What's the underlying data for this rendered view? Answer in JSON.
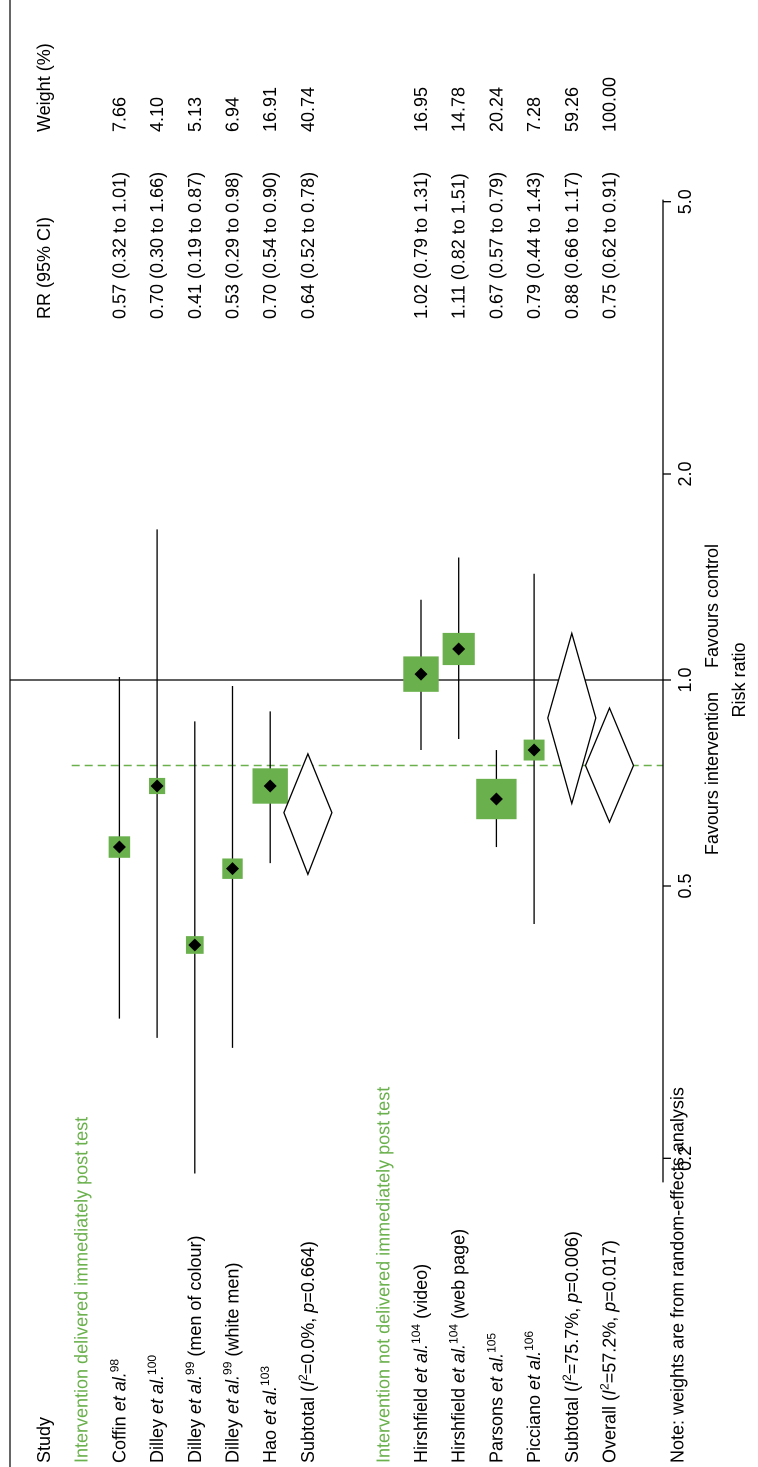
{
  "chart_data": {
    "type": "forest",
    "colors": {
      "marker": "#6ab04c",
      "accent": "#6ab04c",
      "ink": "#000000"
    },
    "headers": {
      "study": "Study",
      "rr": "RR (95% CI)",
      "weight": "Weight (%)"
    },
    "groups": [
      {
        "title": "Intervention delivered immediately post test",
        "studies": [
          {
            "label": "Coffin ",
            "etal": "et al.",
            "ref": "98",
            "suffix": "",
            "rr": 0.57,
            "lo": 0.32,
            "hi": 1.01,
            "ci_text": "0.57 (0.32 to 1.01)",
            "weight": 7.66,
            "weight_text": "7.66"
          },
          {
            "label": "Dilley ",
            "etal": "et al.",
            "ref": "100",
            "suffix": "",
            "rr": 0.7,
            "lo": 0.3,
            "hi": 1.66,
            "ci_text": "0.70 (0.30 to 1.66)",
            "weight": 4.1,
            "weight_text": "4.10"
          },
          {
            "label": "Dilley ",
            "etal": "et al.",
            "ref": "99",
            "suffix": " (men of colour)",
            "rr": 0.41,
            "lo": 0.19,
            "hi": 0.87,
            "ci_text": "0.41 (0.19 to 0.87)",
            "weight": 5.13,
            "weight_text": "5.13"
          },
          {
            "label": "Dilley ",
            "etal": "et al.",
            "ref": "99",
            "suffix": " (white men)",
            "rr": 0.53,
            "lo": 0.29,
            "hi": 0.98,
            "ci_text": "0.53 (0.29 to 0.98)",
            "weight": 6.94,
            "weight_text": "6.94"
          },
          {
            "label": "Hao ",
            "etal": "et al.",
            "ref": "103",
            "suffix": "",
            "rr": 0.7,
            "lo": 0.54,
            "hi": 0.9,
            "ci_text": "0.70 (0.54 to 0.90)",
            "weight": 16.91,
            "weight_text": "16.91"
          }
        ],
        "subtotal": {
          "label_pre": "Subtotal (",
          "i2_var": "I",
          "i2_text": "=0.0%, ",
          "p_var": "p",
          "p_text": "=0.664)",
          "rr": 0.64,
          "lo": 0.52,
          "hi": 0.78,
          "ci_text": "0.64 (0.52 to 0.78)",
          "weight_text": "40.74"
        }
      },
      {
        "title": "Intervention not delivered immediately post test",
        "studies": [
          {
            "label": "Hirshfield ",
            "etal": "et al.",
            "ref": "104",
            "suffix": " (video)",
            "rr": 1.02,
            "lo": 0.79,
            "hi": 1.31,
            "ci_text": "1.02 (0.79 to 1.31)",
            "weight": 16.95,
            "weight_text": "16.95"
          },
          {
            "label": "Hirshfield ",
            "etal": "et al.",
            "ref": "104",
            "suffix": " (web page)",
            "rr": 1.11,
            "lo": 0.82,
            "hi": 1.51,
            "ci_text": "1.11 (0.82 to 1.51)",
            "weight": 14.78,
            "weight_text": "14.78"
          },
          {
            "label": "Parsons ",
            "etal": "et al.",
            "ref": "105",
            "suffix": "",
            "rr": 0.67,
            "lo": 0.57,
            "hi": 0.79,
            "ci_text": "0.67 (0.57 to 0.79)",
            "weight": 20.24,
            "weight_text": "20.24"
          },
          {
            "label": "Picciano ",
            "etal": "et al.",
            "ref": "106",
            "suffix": "",
            "rr": 0.79,
            "lo": 0.44,
            "hi": 1.43,
            "ci_text": "0.79 (0.44 to 1.43)",
            "weight": 7.28,
            "weight_text": "7.28"
          }
        ],
        "subtotal": {
          "label_pre": "Subtotal (",
          "i2_var": "I",
          "i2_text": "=75.7%, ",
          "p_var": "p",
          "p_text": "=0.006)",
          "rr": 0.88,
          "lo": 0.66,
          "hi": 1.17,
          "ci_text": "0.88 (0.66 to 1.17)",
          "weight_text": "59.26"
        }
      }
    ],
    "overall": {
      "label_pre": "Overall (",
      "i2_var": "I",
      "i2_text": "=57.2%, ",
      "p_var": "p",
      "p_text": "=0.017)",
      "rr": 0.75,
      "lo": 0.62,
      "hi": 0.91,
      "ci_text": "0.75 (0.62 to 0.91)",
      "weight_text": "100.00"
    },
    "note": "Note: weights are from random-effects analysis",
    "x_axis": {
      "scale": "log",
      "ticks": [
        0.2,
        0.5,
        1.0,
        2.0,
        5.0
      ],
      "tick_labels": [
        "0.2",
        "0.5",
        "1.0",
        "2.0",
        "5.0"
      ],
      "xlabel": "Risk ratio",
      "null_value": 1.0
    },
    "favours_left": "Favours intervention",
    "favours_right": "Favours control"
  }
}
